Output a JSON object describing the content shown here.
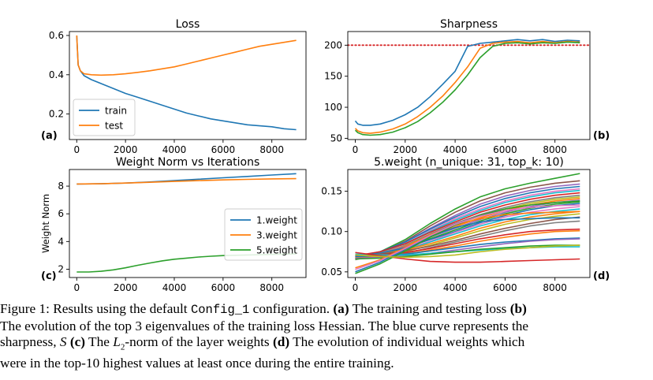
{
  "chart_data": [
    {
      "id": "a",
      "type": "line",
      "panel_label": "(a)",
      "title": "Loss",
      "xlabel": "",
      "ylabel": "",
      "xlim": [
        -300,
        9400
      ],
      "ylim": [
        0.07,
        0.62
      ],
      "xticks": [
        0,
        2000,
        4000,
        6000,
        8000
      ],
      "yticks": [
        0.2,
        0.4,
        0.6
      ],
      "ytick_labels": [
        "0.2",
        "0.4",
        "0.6"
      ],
      "grid": false,
      "legend_position": "lower-left",
      "legend": [
        "train",
        "test"
      ],
      "series": [
        {
          "name": "train",
          "color": "#1f77b4",
          "x": [
            0,
            60,
            150,
            300,
            600,
            1000,
            1500,
            2000,
            2500,
            3000,
            3500,
            4000,
            4500,
            5000,
            5500,
            6000,
            6500,
            7000,
            7500,
            8000,
            8500,
            9000
          ],
          "y": [
            0.6,
            0.45,
            0.42,
            0.395,
            0.375,
            0.355,
            0.33,
            0.305,
            0.285,
            0.265,
            0.245,
            0.225,
            0.205,
            0.19,
            0.175,
            0.165,
            0.155,
            0.145,
            0.14,
            0.135,
            0.125,
            0.12
          ]
        },
        {
          "name": "test",
          "color": "#ff7f0e",
          "x": [
            0,
            60,
            150,
            300,
            600,
            1000,
            1500,
            2000,
            2500,
            3000,
            3500,
            4000,
            4500,
            5000,
            5500,
            6000,
            6500,
            7000,
            7500,
            8000,
            8500,
            9000
          ],
          "y": [
            0.6,
            0.45,
            0.42,
            0.405,
            0.4,
            0.398,
            0.4,
            0.405,
            0.412,
            0.42,
            0.43,
            0.44,
            0.455,
            0.47,
            0.485,
            0.5,
            0.515,
            0.53,
            0.545,
            0.555,
            0.565,
            0.575
          ]
        }
      ]
    },
    {
      "id": "b",
      "type": "line",
      "panel_label": "(b)",
      "title": "Sharpness",
      "xlabel": "",
      "ylabel": "",
      "xlim": [
        -300,
        9400
      ],
      "ylim": [
        48,
        222
      ],
      "xticks": [
        0,
        2000,
        4000,
        6000,
        8000
      ],
      "yticks": [
        50,
        100,
        150,
        200
      ],
      "ytick_labels": [
        "50",
        "100",
        "150",
        "200"
      ],
      "grid": false,
      "reference_line": {
        "y": 200,
        "color": "#d62728",
        "style": "dotted"
      },
      "series": [
        {
          "color": "#1f77b4",
          "x": [
            0,
            100,
            300,
            600,
            1000,
            1500,
            2000,
            2500,
            3000,
            3500,
            4000,
            4500,
            5000,
            5500,
            6000,
            6500,
            7000,
            7500,
            8000,
            8500,
            9000
          ],
          "y": [
            78,
            73,
            71,
            71,
            73,
            79,
            88,
            100,
            117,
            137,
            158,
            198,
            203,
            205,
            207,
            209,
            207,
            209,
            206,
            208,
            207
          ]
        },
        {
          "color": "#ff7f0e",
          "x": [
            0,
            100,
            300,
            600,
            1000,
            1500,
            2000,
            2500,
            3000,
            3500,
            4000,
            4500,
            5000,
            5500,
            6000,
            6500,
            7000,
            7500,
            8000,
            8500,
            9000
          ],
          "y": [
            66,
            62,
            59,
            58,
            60,
            65,
            73,
            85,
            100,
            118,
            140,
            165,
            195,
            203,
            205,
            206,
            204,
            206,
            204,
            206,
            205
          ]
        },
        {
          "color": "#2ca02c",
          "x": [
            0,
            100,
            300,
            600,
            1000,
            1500,
            2000,
            2500,
            3000,
            3500,
            4000,
            4500,
            5000,
            5500,
            6000,
            6500,
            7000,
            7500,
            8000,
            8500,
            9000
          ],
          "y": [
            63,
            59,
            56,
            55,
            56,
            60,
            67,
            77,
            91,
            108,
            128,
            152,
            180,
            198,
            203,
            204,
            202,
            204,
            203,
            205,
            204
          ]
        }
      ]
    },
    {
      "id": "c",
      "type": "line",
      "panel_label": "(c)",
      "title": "Weight Norm vs Iterations",
      "xlabel": "",
      "ylabel": "Weight Norm",
      "xlim": [
        -300,
        9400
      ],
      "ylim": [
        1.4,
        9.2
      ],
      "xticks": [
        0,
        2000,
        4000,
        6000,
        8000
      ],
      "yticks": [
        2,
        4,
        6,
        8
      ],
      "ytick_labels": [
        "2",
        "4",
        "6",
        "8"
      ],
      "grid": false,
      "legend_position": "center-right",
      "legend": [
        "1.weight",
        "3.weight",
        "5.weight"
      ],
      "series": [
        {
          "name": "1.weight",
          "color": "#1f77b4",
          "x": [
            0,
            1000,
            2000,
            3000,
            4000,
            5000,
            6000,
            7000,
            8000,
            9000
          ],
          "y": [
            8.15,
            8.17,
            8.22,
            8.3,
            8.4,
            8.5,
            8.6,
            8.7,
            8.8,
            8.9
          ]
        },
        {
          "name": "3.weight",
          "color": "#ff7f0e",
          "x": [
            0,
            1000,
            2000,
            3000,
            4000,
            5000,
            6000,
            7000,
            8000,
            9000
          ],
          "y": [
            8.15,
            8.17,
            8.22,
            8.28,
            8.34,
            8.4,
            8.45,
            8.49,
            8.52,
            8.54
          ]
        },
        {
          "name": "5.weight",
          "color": "#2ca02c",
          "x": [
            0,
            500,
            1000,
            1500,
            2000,
            2500,
            3000,
            3500,
            4000,
            4500,
            5000,
            5500,
            6000,
            7000,
            8000,
            9000
          ],
          "y": [
            1.8,
            1.8,
            1.85,
            1.95,
            2.1,
            2.28,
            2.45,
            2.6,
            2.72,
            2.8,
            2.88,
            2.94,
            2.98,
            3.03,
            3.07,
            3.1
          ]
        }
      ]
    },
    {
      "id": "d",
      "type": "line",
      "panel_label": "(d)",
      "title": "5.weight (n_unique: 31, top_k: 10)",
      "xlabel": "",
      "ylabel": "",
      "xlim": [
        -300,
        9400
      ],
      "ylim": [
        0.043,
        0.177
      ],
      "xticks": [
        0,
        2000,
        4000,
        6000,
        8000
      ],
      "yticks": [
        0.05,
        0.1,
        0.15
      ],
      "ytick_labels": [
        "0.05",
        "0.10",
        "0.15"
      ],
      "grid": false,
      "x_common": [
        0,
        1000,
        2000,
        3000,
        4000,
        5000,
        6000,
        7000,
        8000,
        9000
      ],
      "series": [
        {
          "color": "#2ca02c",
          "values": [
            0.068,
            0.075,
            0.09,
            0.11,
            0.128,
            0.143,
            0.153,
            0.16,
            0.166,
            0.172
          ]
        },
        {
          "color": "#8c564b",
          "values": [
            0.066,
            0.074,
            0.088,
            0.107,
            0.124,
            0.138,
            0.148,
            0.155,
            0.16,
            0.163
          ]
        },
        {
          "color": "#9467bd",
          "values": [
            0.067,
            0.074,
            0.087,
            0.104,
            0.12,
            0.134,
            0.144,
            0.151,
            0.156,
            0.159
          ]
        },
        {
          "color": "#1f77b4",
          "values": [
            0.069,
            0.075,
            0.087,
            0.103,
            0.118,
            0.131,
            0.141,
            0.148,
            0.153,
            0.156
          ]
        },
        {
          "color": "#e377c2",
          "values": [
            0.066,
            0.073,
            0.085,
            0.101,
            0.116,
            0.128,
            0.138,
            0.145,
            0.15,
            0.153
          ]
        },
        {
          "color": "#17becf",
          "values": [
            0.068,
            0.074,
            0.085,
            0.1,
            0.114,
            0.126,
            0.136,
            0.143,
            0.148,
            0.151
          ]
        },
        {
          "color": "#d62728",
          "values": [
            0.07,
            0.075,
            0.085,
            0.099,
            0.112,
            0.124,
            0.133,
            0.14,
            0.145,
            0.148
          ]
        },
        {
          "color": "#7f7f7f",
          "values": [
            0.065,
            0.072,
            0.083,
            0.097,
            0.11,
            0.121,
            0.13,
            0.137,
            0.142,
            0.145
          ]
        },
        {
          "color": "#bcbd22",
          "values": [
            0.066,
            0.072,
            0.082,
            0.095,
            0.108,
            0.119,
            0.128,
            0.135,
            0.14,
            0.143
          ]
        },
        {
          "color": "#ff7f0e",
          "values": [
            0.067,
            0.073,
            0.082,
            0.094,
            0.106,
            0.117,
            0.126,
            0.133,
            0.138,
            0.141
          ]
        },
        {
          "color": "#9467bd",
          "values": [
            0.069,
            0.073,
            0.081,
            0.093,
            0.104,
            0.115,
            0.124,
            0.131,
            0.136,
            0.139
          ]
        },
        {
          "color": "#2ca02c",
          "values": [
            0.066,
            0.071,
            0.079,
            0.091,
            0.102,
            0.113,
            0.122,
            0.129,
            0.134,
            0.137
          ]
        },
        {
          "color": "#1f77b4",
          "values": [
            0.07,
            0.073,
            0.08,
            0.09,
            0.1,
            0.111,
            0.12,
            0.127,
            0.132,
            0.135
          ]
        },
        {
          "color": "#e377c2",
          "values": [
            0.067,
            0.071,
            0.078,
            0.088,
            0.099,
            0.109,
            0.118,
            0.124,
            0.128,
            0.131
          ]
        },
        {
          "color": "#17becf",
          "values": [
            0.068,
            0.071,
            0.077,
            0.087,
            0.097,
            0.107,
            0.115,
            0.121,
            0.125,
            0.128
          ]
        },
        {
          "color": "#ff7f0e",
          "values": [
            0.069,
            0.072,
            0.077,
            0.085,
            0.094,
            0.104,
            0.112,
            0.118,
            0.122,
            0.125
          ]
        },
        {
          "color": "#bcbd22",
          "values": [
            0.066,
            0.069,
            0.075,
            0.083,
            0.092,
            0.101,
            0.109,
            0.115,
            0.119,
            0.122
          ]
        },
        {
          "color": "#8c564b",
          "values": [
            0.07,
            0.072,
            0.076,
            0.082,
            0.089,
            0.097,
            0.104,
            0.11,
            0.115,
            0.118
          ]
        },
        {
          "color": "#7f7f7f",
          "values": [
            0.067,
            0.069,
            0.073,
            0.08,
            0.087,
            0.094,
            0.101,
            0.107,
            0.111,
            0.113
          ]
        },
        {
          "color": "#d62728",
          "values": [
            0.07,
            0.071,
            0.074,
            0.079,
            0.085,
            0.091,
            0.096,
            0.1,
            0.102,
            0.103
          ]
        },
        {
          "color": "#ff7f0e",
          "values": [
            0.068,
            0.069,
            0.072,
            0.077,
            0.082,
            0.088,
            0.093,
            0.097,
            0.1,
            0.101
          ]
        },
        {
          "color": "#1f77b4",
          "values": [
            0.069,
            0.07,
            0.072,
            0.076,
            0.08,
            0.084,
            0.087,
            0.089,
            0.091,
            0.092
          ]
        },
        {
          "color": "#9467bd",
          "values": [
            0.067,
            0.068,
            0.07,
            0.073,
            0.077,
            0.081,
            0.085,
            0.088,
            0.09,
            0.091
          ]
        },
        {
          "color": "#17becf",
          "values": [
            0.072,
            0.071,
            0.071,
            0.073,
            0.075,
            0.077,
            0.079,
            0.08,
            0.081,
            0.081
          ]
        },
        {
          "color": "#2ca02c",
          "values": [
            0.066,
            0.067,
            0.069,
            0.072,
            0.075,
            0.078,
            0.08,
            0.082,
            0.083,
            0.083
          ]
        },
        {
          "color": "#d62728",
          "values": [
            0.074,
            0.07,
            0.066,
            0.063,
            0.062,
            0.062,
            0.063,
            0.064,
            0.065,
            0.066
          ]
        },
        {
          "color": "#1f77b4",
          "values": [
            0.05,
            0.062,
            0.078,
            0.094,
            0.105,
            0.112,
            0.115,
            0.116,
            0.117,
            0.117
          ]
        },
        {
          "color": "#ff7f0e",
          "values": [
            0.055,
            0.065,
            0.08,
            0.096,
            0.108,
            0.116,
            0.121,
            0.123,
            0.124,
            0.125
          ]
        },
        {
          "color": "#2ca02c",
          "values": [
            0.048,
            0.06,
            0.076,
            0.093,
            0.108,
            0.12,
            0.128,
            0.133,
            0.136,
            0.138
          ]
        },
        {
          "color": "#e377c2",
          "values": [
            0.053,
            0.064,
            0.079,
            0.095,
            0.109,
            0.119,
            0.126,
            0.13,
            0.132,
            0.133
          ]
        },
        {
          "color": "#bcbd22",
          "values": [
            0.071,
            0.069,
            0.068,
            0.069,
            0.071,
            0.075,
            0.078,
            0.08,
            0.082,
            0.083
          ]
        }
      ]
    }
  ],
  "caption": {
    "fig_label": "Figure 1:",
    "seg1": " Results using the default ",
    "config": "Config_1",
    "seg2": " configuration. ",
    "a": "(a)",
    "seg3": " The training and testing loss ",
    "b": "(b)",
    "line2": "The evolution of the top 3 eigenvalues of the training loss Hessian. The blue curve represents the",
    "seg4": "sharpness, ",
    "S": "S",
    "c": "(c)",
    "seg5": " The ",
    "L": "L",
    "L_sub": "2",
    "seg6": "-norm of the layer weights ",
    "d": "(d)",
    "seg7": " The evolution of individual weights which",
    "line4": "were in the top-10 highest values at least once during the entire training."
  }
}
